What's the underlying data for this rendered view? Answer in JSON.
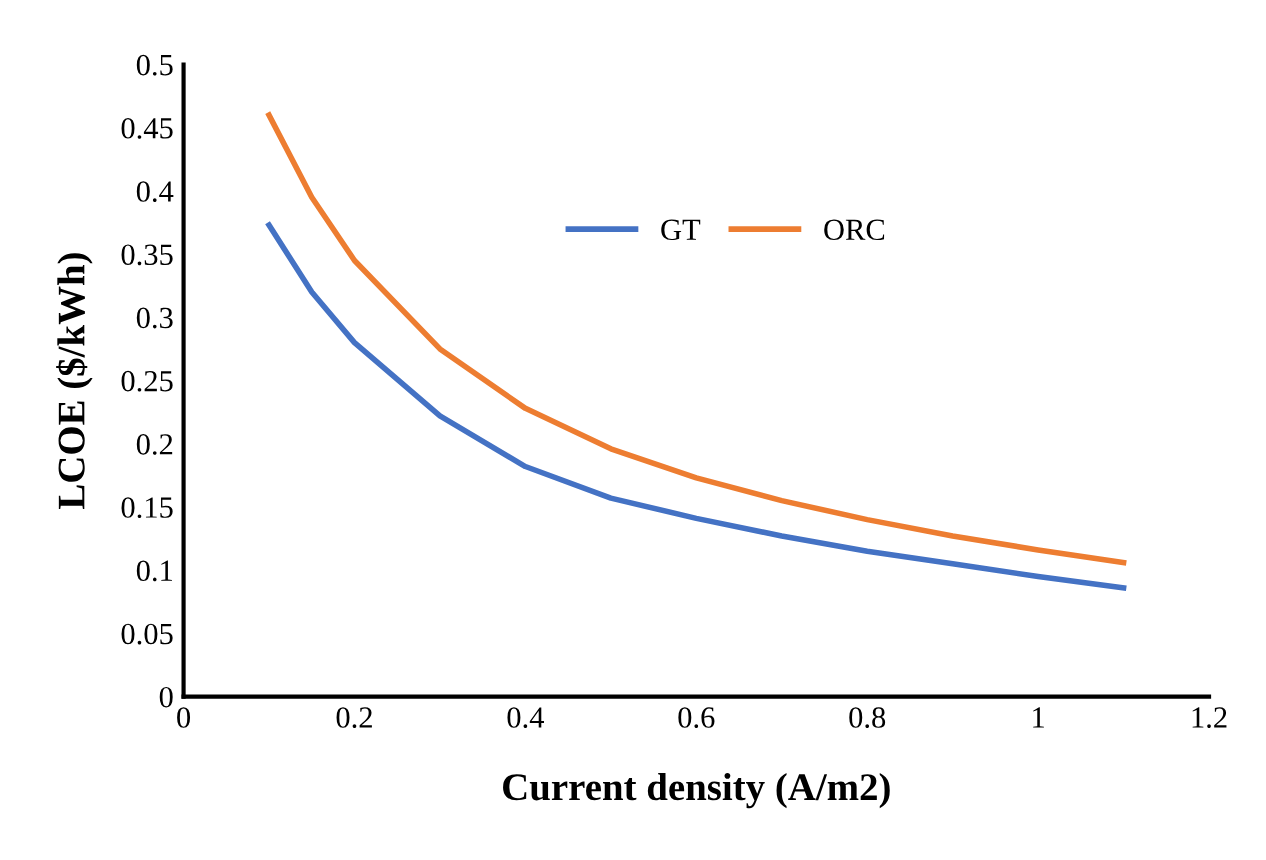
{
  "chart_data": {
    "type": "line",
    "xlabel": "Current density (A/m2)",
    "ylabel": "LCOE ($/kWh)",
    "x": [
      0.1,
      0.15,
      0.2,
      0.3,
      0.4,
      0.5,
      0.6,
      0.7,
      0.8,
      0.9,
      1.0,
      1.1
    ],
    "series": [
      {
        "name": "GT",
        "color": "#4472c4",
        "values": [
          0.373,
          0.32,
          0.28,
          0.222,
          0.182,
          0.157,
          0.141,
          0.127,
          0.115,
          0.105,
          0.095,
          0.086
        ]
      },
      {
        "name": "ORC",
        "color": "#ed7d31",
        "values": [
          0.46,
          0.395,
          0.345,
          0.275,
          0.228,
          0.196,
          0.173,
          0.155,
          0.14,
          0.127,
          0.116,
          0.106
        ]
      }
    ],
    "xlim": [
      0,
      1.2
    ],
    "xticks": [
      0,
      0.2,
      0.4,
      0.6,
      0.8,
      1,
      1.2
    ],
    "ylim": [
      0,
      0.5
    ],
    "yticks": [
      0,
      0.05,
      0.1,
      0.15,
      0.2,
      0.25,
      0.3,
      0.35,
      0.4,
      0.45,
      0.5
    ],
    "grid": false,
    "legend": "top",
    "marker": "none",
    "line_style": "solid"
  }
}
